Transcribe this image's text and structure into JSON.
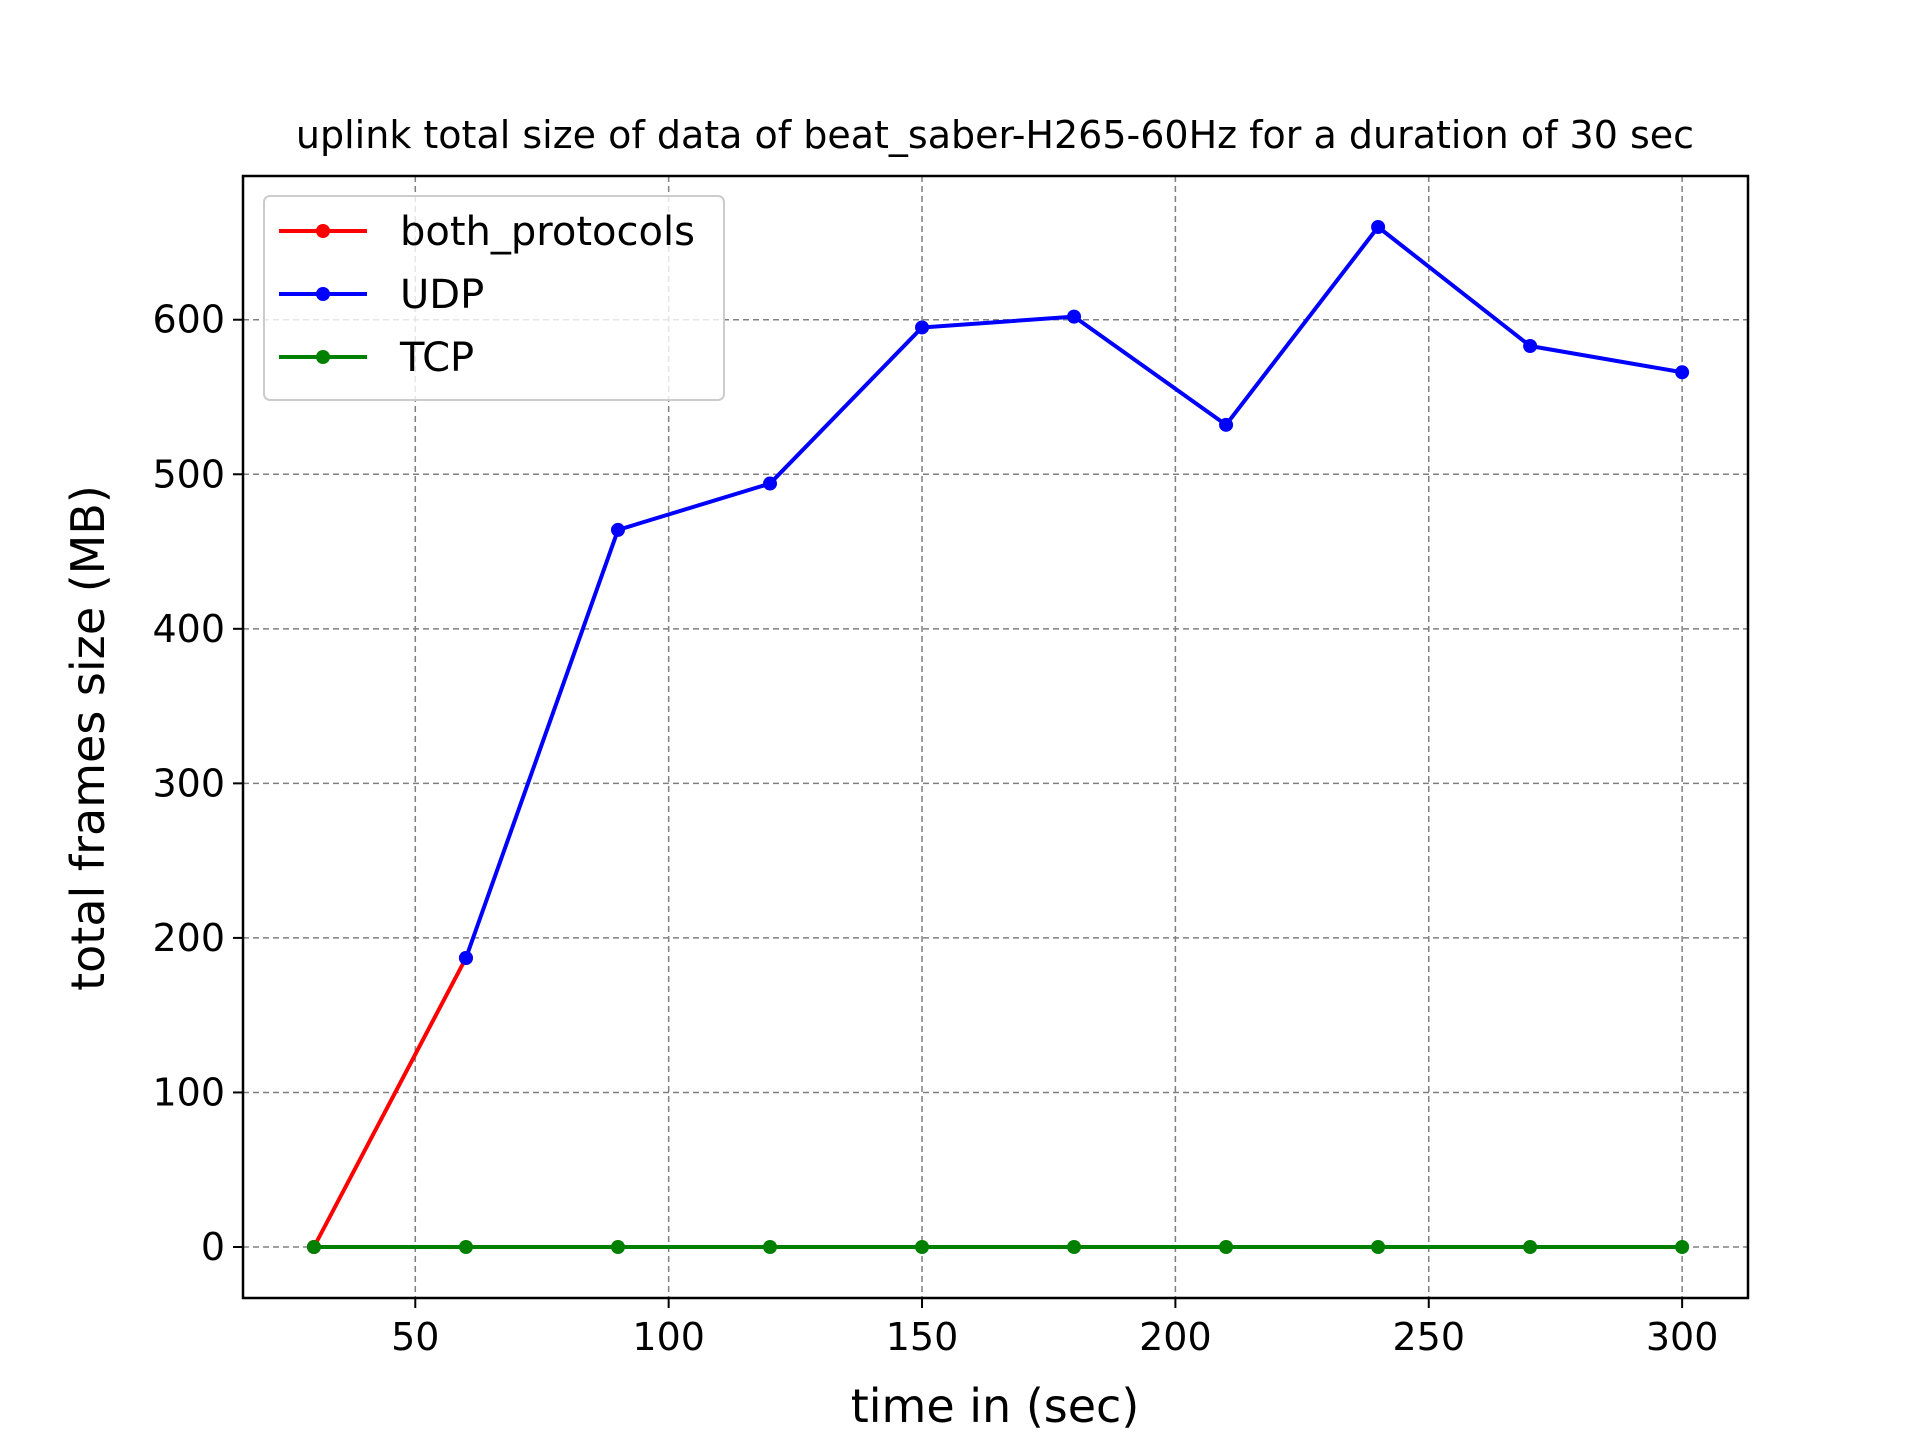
{
  "chart_data": {
    "type": "line",
    "title": "uplink total size of data of beat_saber-H265-60Hz for a duration of 30 sec",
    "xlabel": "time in (sec)",
    "ylabel": "total frames size (MB)",
    "xlim": [
      16,
      313
    ],
    "ylim": [
      -33,
      693
    ],
    "xticks": [
      50,
      100,
      150,
      200,
      250,
      300
    ],
    "yticks": [
      0,
      100,
      200,
      300,
      400,
      500,
      600
    ],
    "grid": true,
    "legend_position": "top-left",
    "series": [
      {
        "name": "both_protocols",
        "color": "#ff0000",
        "points": [
          [
            30,
            0
          ],
          [
            60,
            187
          ]
        ]
      },
      {
        "name": "UDP",
        "color": "#0000ff",
        "points": [
          [
            60,
            187
          ],
          [
            90,
            464
          ],
          [
            120,
            494
          ],
          [
            150,
            595
          ],
          [
            180,
            602
          ],
          [
            210,
            532
          ],
          [
            240,
            660
          ],
          [
            270,
            583
          ],
          [
            300,
            566
          ]
        ]
      },
      {
        "name": "TCP",
        "color": "#008000",
        "points": [
          [
            30,
            0
          ],
          [
            60,
            0
          ],
          [
            90,
            0
          ],
          [
            120,
            0
          ],
          [
            150,
            0
          ],
          [
            180,
            0
          ],
          [
            210,
            0
          ],
          [
            240,
            0
          ],
          [
            270,
            0
          ],
          [
            300,
            0
          ]
        ]
      }
    ]
  }
}
